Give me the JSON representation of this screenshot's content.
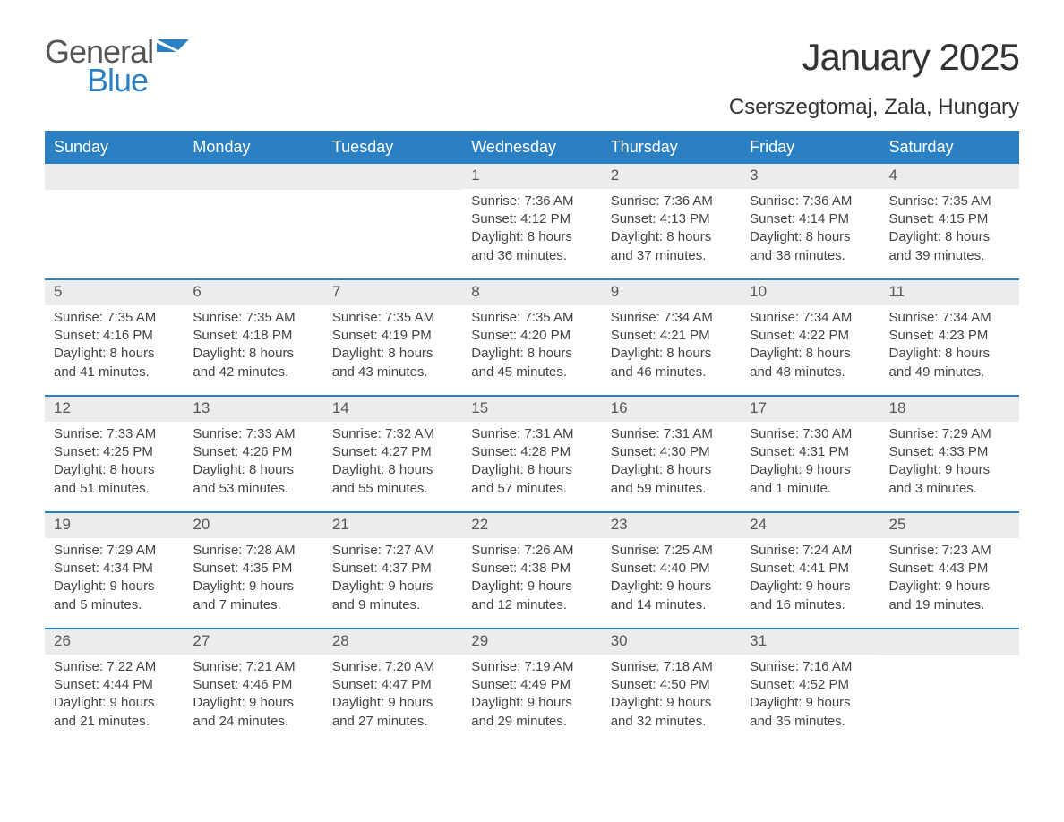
{
  "brand": {
    "word1": "General",
    "word2": "Blue"
  },
  "title": "January 2025",
  "location": "Cserszegtomaj, Zala, Hungary",
  "colors": {
    "brand_blue": "#2b7fc3",
    "text": "#333333",
    "strip_bg": "#ececec",
    "page_bg": "#ffffff"
  },
  "fonts": {
    "title_size_pt": 32,
    "location_size_pt": 18,
    "header_size_pt": 14,
    "cell_size_pt": 11
  },
  "calendar": {
    "columns": [
      "Sunday",
      "Monday",
      "Tuesday",
      "Wednesday",
      "Thursday",
      "Friday",
      "Saturday"
    ],
    "weeks": [
      [
        null,
        null,
        null,
        {
          "day": "1",
          "sunrise": "Sunrise: 7:36 AM",
          "sunset": "Sunset: 4:12 PM",
          "daylight": "Daylight: 8 hours and 36 minutes."
        },
        {
          "day": "2",
          "sunrise": "Sunrise: 7:36 AM",
          "sunset": "Sunset: 4:13 PM",
          "daylight": "Daylight: 8 hours and 37 minutes."
        },
        {
          "day": "3",
          "sunrise": "Sunrise: 7:36 AM",
          "sunset": "Sunset: 4:14 PM",
          "daylight": "Daylight: 8 hours and 38 minutes."
        },
        {
          "day": "4",
          "sunrise": "Sunrise: 7:35 AM",
          "sunset": "Sunset: 4:15 PM",
          "daylight": "Daylight: 8 hours and 39 minutes."
        }
      ],
      [
        {
          "day": "5",
          "sunrise": "Sunrise: 7:35 AM",
          "sunset": "Sunset: 4:16 PM",
          "daylight": "Daylight: 8 hours and 41 minutes."
        },
        {
          "day": "6",
          "sunrise": "Sunrise: 7:35 AM",
          "sunset": "Sunset: 4:18 PM",
          "daylight": "Daylight: 8 hours and 42 minutes."
        },
        {
          "day": "7",
          "sunrise": "Sunrise: 7:35 AM",
          "sunset": "Sunset: 4:19 PM",
          "daylight": "Daylight: 8 hours and 43 minutes."
        },
        {
          "day": "8",
          "sunrise": "Sunrise: 7:35 AM",
          "sunset": "Sunset: 4:20 PM",
          "daylight": "Daylight: 8 hours and 45 minutes."
        },
        {
          "day": "9",
          "sunrise": "Sunrise: 7:34 AM",
          "sunset": "Sunset: 4:21 PM",
          "daylight": "Daylight: 8 hours and 46 minutes."
        },
        {
          "day": "10",
          "sunrise": "Sunrise: 7:34 AM",
          "sunset": "Sunset: 4:22 PM",
          "daylight": "Daylight: 8 hours and 48 minutes."
        },
        {
          "day": "11",
          "sunrise": "Sunrise: 7:34 AM",
          "sunset": "Sunset: 4:23 PM",
          "daylight": "Daylight: 8 hours and 49 minutes."
        }
      ],
      [
        {
          "day": "12",
          "sunrise": "Sunrise: 7:33 AM",
          "sunset": "Sunset: 4:25 PM",
          "daylight": "Daylight: 8 hours and 51 minutes."
        },
        {
          "day": "13",
          "sunrise": "Sunrise: 7:33 AM",
          "sunset": "Sunset: 4:26 PM",
          "daylight": "Daylight: 8 hours and 53 minutes."
        },
        {
          "day": "14",
          "sunrise": "Sunrise: 7:32 AM",
          "sunset": "Sunset: 4:27 PM",
          "daylight": "Daylight: 8 hours and 55 minutes."
        },
        {
          "day": "15",
          "sunrise": "Sunrise: 7:31 AM",
          "sunset": "Sunset: 4:28 PM",
          "daylight": "Daylight: 8 hours and 57 minutes."
        },
        {
          "day": "16",
          "sunrise": "Sunrise: 7:31 AM",
          "sunset": "Sunset: 4:30 PM",
          "daylight": "Daylight: 8 hours and 59 minutes."
        },
        {
          "day": "17",
          "sunrise": "Sunrise: 7:30 AM",
          "sunset": "Sunset: 4:31 PM",
          "daylight": "Daylight: 9 hours and 1 minute."
        },
        {
          "day": "18",
          "sunrise": "Sunrise: 7:29 AM",
          "sunset": "Sunset: 4:33 PM",
          "daylight": "Daylight: 9 hours and 3 minutes."
        }
      ],
      [
        {
          "day": "19",
          "sunrise": "Sunrise: 7:29 AM",
          "sunset": "Sunset: 4:34 PM",
          "daylight": "Daylight: 9 hours and 5 minutes."
        },
        {
          "day": "20",
          "sunrise": "Sunrise: 7:28 AM",
          "sunset": "Sunset: 4:35 PM",
          "daylight": "Daylight: 9 hours and 7 minutes."
        },
        {
          "day": "21",
          "sunrise": "Sunrise: 7:27 AM",
          "sunset": "Sunset: 4:37 PM",
          "daylight": "Daylight: 9 hours and 9 minutes."
        },
        {
          "day": "22",
          "sunrise": "Sunrise: 7:26 AM",
          "sunset": "Sunset: 4:38 PM",
          "daylight": "Daylight: 9 hours and 12 minutes."
        },
        {
          "day": "23",
          "sunrise": "Sunrise: 7:25 AM",
          "sunset": "Sunset: 4:40 PM",
          "daylight": "Daylight: 9 hours and 14 minutes."
        },
        {
          "day": "24",
          "sunrise": "Sunrise: 7:24 AM",
          "sunset": "Sunset: 4:41 PM",
          "daylight": "Daylight: 9 hours and 16 minutes."
        },
        {
          "day": "25",
          "sunrise": "Sunrise: 7:23 AM",
          "sunset": "Sunset: 4:43 PM",
          "daylight": "Daylight: 9 hours and 19 minutes."
        }
      ],
      [
        {
          "day": "26",
          "sunrise": "Sunrise: 7:22 AM",
          "sunset": "Sunset: 4:44 PM",
          "daylight": "Daylight: 9 hours and 21 minutes."
        },
        {
          "day": "27",
          "sunrise": "Sunrise: 7:21 AM",
          "sunset": "Sunset: 4:46 PM",
          "daylight": "Daylight: 9 hours and 24 minutes."
        },
        {
          "day": "28",
          "sunrise": "Sunrise: 7:20 AM",
          "sunset": "Sunset: 4:47 PM",
          "daylight": "Daylight: 9 hours and 27 minutes."
        },
        {
          "day": "29",
          "sunrise": "Sunrise: 7:19 AM",
          "sunset": "Sunset: 4:49 PM",
          "daylight": "Daylight: 9 hours and 29 minutes."
        },
        {
          "day": "30",
          "sunrise": "Sunrise: 7:18 AM",
          "sunset": "Sunset: 4:50 PM",
          "daylight": "Daylight: 9 hours and 32 minutes."
        },
        {
          "day": "31",
          "sunrise": "Sunrise: 7:16 AM",
          "sunset": "Sunset: 4:52 PM",
          "daylight": "Daylight: 9 hours and 35 minutes."
        },
        null
      ]
    ]
  }
}
